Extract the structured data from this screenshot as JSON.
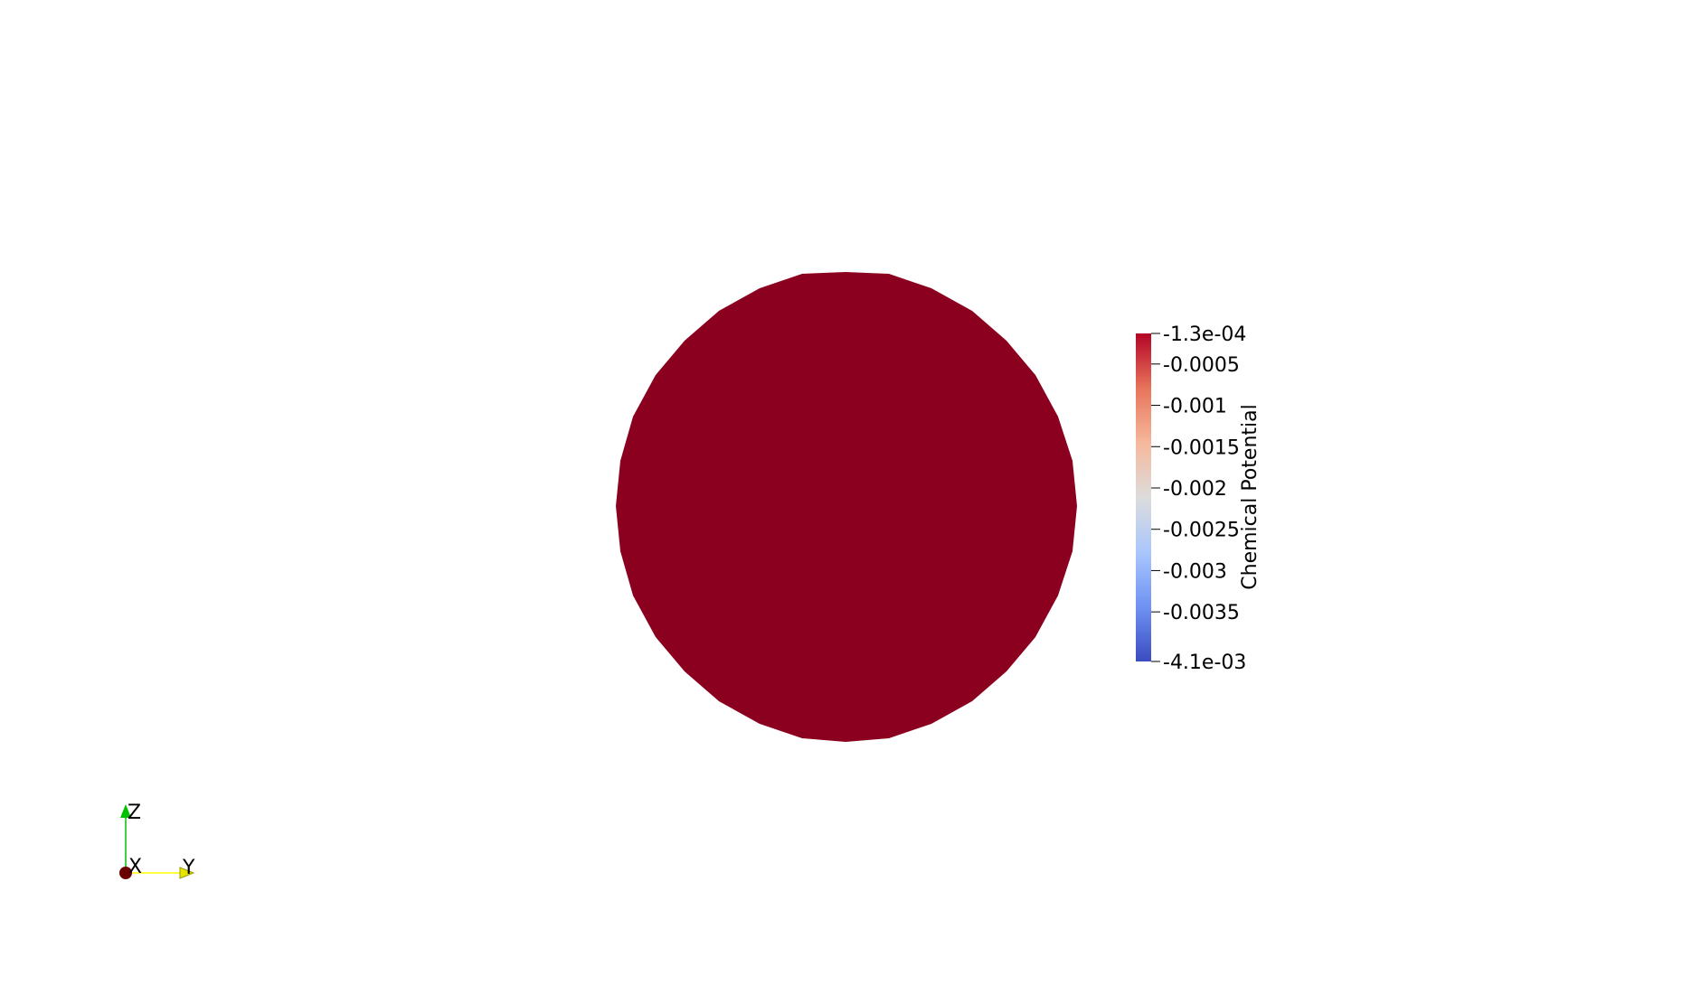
{
  "scene": {
    "background_color": "#ffffff",
    "object_color": "#8b001f",
    "object_shape": "circular disc"
  },
  "color_legend": {
    "title": "Chemical Potential",
    "colormap": "Cool to Warm",
    "range": [
      -0.0041,
      -0.00013
    ],
    "colors": [
      "#3b4cc0",
      "#6f92f3",
      "#aac7fd",
      "#dddcdc",
      "#f6b89c",
      "#e7745b",
      "#b40426"
    ],
    "tick_labels": [
      "-1.3e-04",
      "-0.0005",
      "-0.001",
      "-0.0015",
      "-0.002",
      "-0.0025",
      "-0.003",
      "-0.0035",
      "-4.1e-03"
    ],
    "tick_values": [
      -0.00013,
      -0.0005,
      -0.001,
      -0.0015,
      -0.002,
      -0.0025,
      -0.003,
      -0.0035,
      -0.0041
    ]
  },
  "orientation_axes": {
    "labels": {
      "x": "X",
      "y": "Y",
      "z": "Z"
    },
    "colors": {
      "x": "#7a0a0a",
      "y": "#ffff00",
      "z": "#00c000"
    }
  }
}
